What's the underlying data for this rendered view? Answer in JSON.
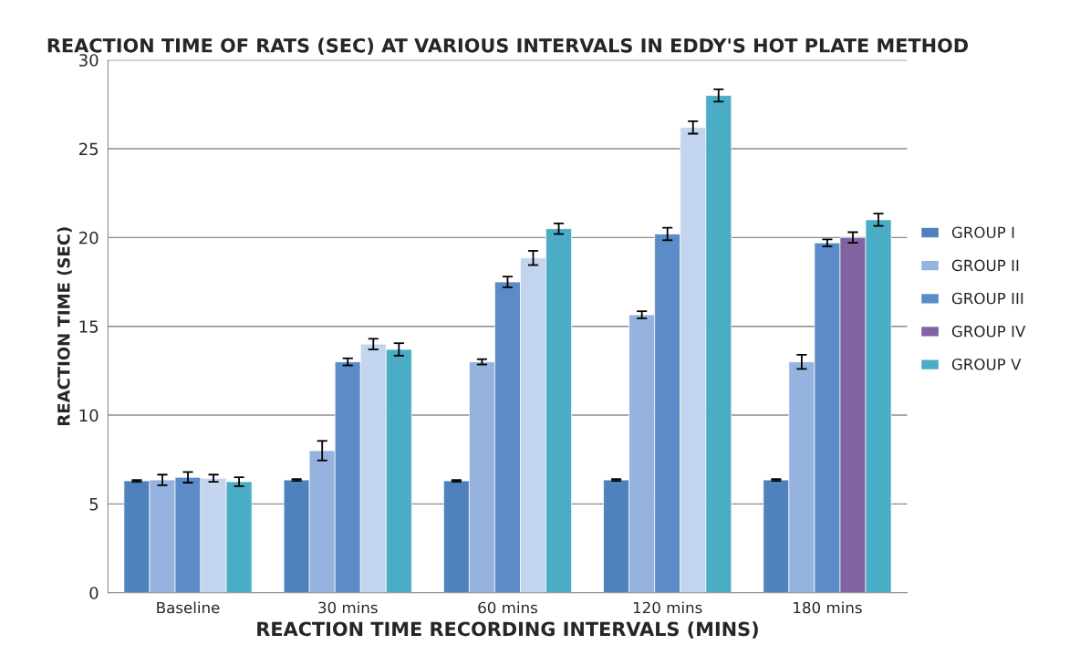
{
  "chart_data": {
    "type": "bar",
    "title": "REACTION TIME OF RATS (SEC) AT VARIOUS INTERVALS IN EDDY'S HOT PLATE METHOD",
    "xlabel": "REACTION TIME RECORDING INTERVALS (MINS)",
    "ylabel": "REACTION TIME (SEC)",
    "categories": [
      "Baseline",
      "30 mins",
      "60 mins",
      "120 mins",
      "180 mins"
    ],
    "series": [
      {
        "name": "GROUP I",
        "color": "#4f81bd",
        "values": [
          6.3,
          6.35,
          6.3,
          6.35,
          6.35
        ],
        "errors": [
          0.05,
          0.05,
          0.05,
          0.05,
          0.05
        ]
      },
      {
        "name": "GROUP II",
        "color": "#95b3de",
        "values": [
          6.35,
          8.0,
          13.0,
          15.65,
          13.0
        ],
        "errors": [
          0.3,
          0.55,
          0.15,
          0.2,
          0.4
        ]
      },
      {
        "name": "GROUP III",
        "color": "#5b8cc8",
        "values": [
          6.5,
          13.0,
          17.5,
          20.2,
          19.7
        ],
        "errors": [
          0.3,
          0.2,
          0.3,
          0.35,
          0.2
        ]
      },
      {
        "name": "GROUP IV",
        "color": "#8064a2",
        "colors": [
          "#c3d4ee",
          "#c3d4ee",
          "#c3d4ee",
          "#c3d4ee",
          "#8064a2"
        ],
        "values": [
          6.45,
          14.0,
          18.85,
          26.2,
          20.0
        ],
        "errors": [
          0.2,
          0.3,
          0.4,
          0.35,
          0.3
        ]
      },
      {
        "name": "GROUP V",
        "color": "#4bacc6",
        "values": [
          6.25,
          13.7,
          20.5,
          28.0,
          21.0
        ],
        "errors": [
          0.25,
          0.35,
          0.3,
          0.35,
          0.35
        ]
      }
    ],
    "ylim": [
      0,
      30
    ],
    "yticks": [
      0,
      5,
      10,
      15,
      20,
      25,
      30
    ],
    "grid": "y",
    "legend": "right"
  }
}
